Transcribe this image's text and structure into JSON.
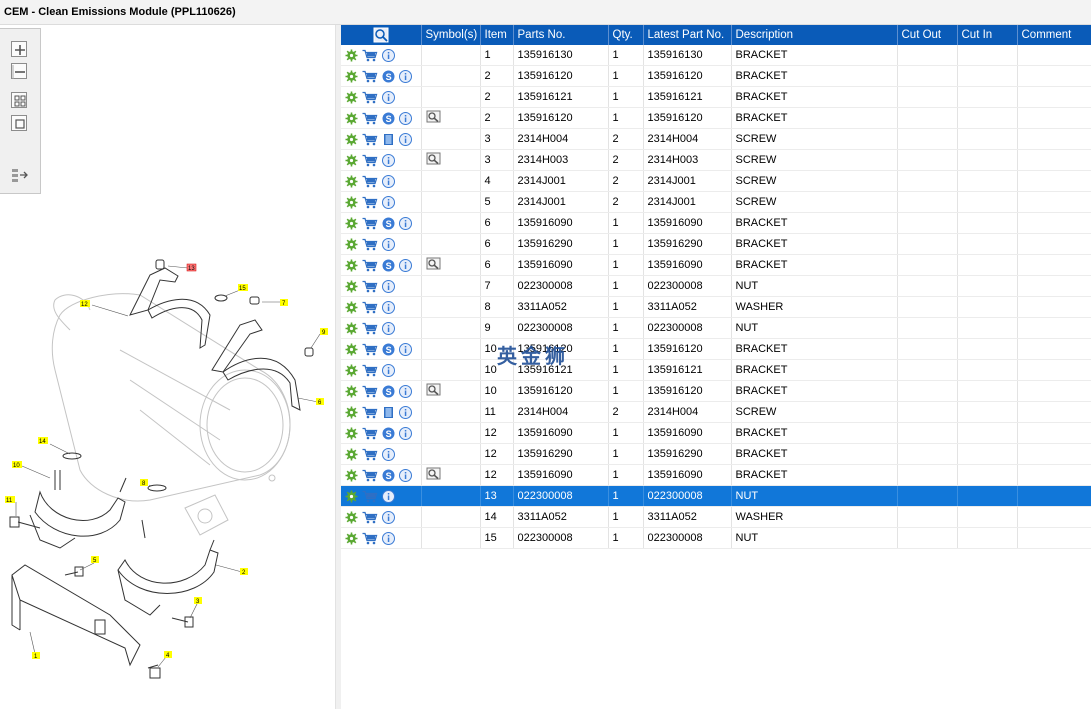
{
  "window": {
    "title": "CEM - Clean Emissions Module (PPL110626)"
  },
  "toolbar": {
    "buttons": [
      {
        "name": "zoom-in-button",
        "icon": "plus-icon"
      },
      {
        "name": "zoom-out-button",
        "icon": "minus-icon"
      },
      {
        "name": "fit-all-button",
        "icon": "grid-icon"
      },
      {
        "name": "fit-window-button",
        "icon": "square-icon"
      },
      {
        "name": "export-button",
        "icon": "list-arrow-icon"
      }
    ]
  },
  "drawing": {
    "callouts": [
      "1",
      "2",
      "3",
      "4",
      "5",
      "6",
      "7",
      "8",
      "9",
      "10",
      "11",
      "12",
      "13",
      "14",
      "15"
    ]
  },
  "grid": {
    "columns": {
      "actions": "",
      "symbols": "Symbol(s)",
      "item": "Item",
      "parts_no": "Parts No.",
      "qty": "Qty.",
      "latest_part_no": "Latest Part No.",
      "description": "Description",
      "cut_out": "Cut Out",
      "cut_in": "Cut In",
      "comment": "Comment"
    },
    "rows": [
      {
        "item": "1",
        "parts_no": "135916130",
        "qty": "1",
        "latest": "135916130",
        "desc": "BRACKET",
        "s": false,
        "book": false,
        "sym": false
      },
      {
        "item": "2",
        "parts_no": "135916120",
        "qty": "1",
        "latest": "135916120",
        "desc": "BRACKET",
        "s": true,
        "book": false,
        "sym": false
      },
      {
        "item": "2",
        "parts_no": "135916121",
        "qty": "1",
        "latest": "135916121",
        "desc": "BRACKET",
        "s": false,
        "book": false,
        "sym": false
      },
      {
        "item": "2",
        "parts_no": "135916120",
        "qty": "1",
        "latest": "135916120",
        "desc": "BRACKET",
        "s": true,
        "book": false,
        "sym": true
      },
      {
        "item": "3",
        "parts_no": "2314H004",
        "qty": "2",
        "latest": "2314H004",
        "desc": "SCREW",
        "s": false,
        "book": true,
        "sym": false
      },
      {
        "item": "3",
        "parts_no": "2314H003",
        "qty": "2",
        "latest": "2314H003",
        "desc": "SCREW",
        "s": false,
        "book": false,
        "sym": true
      },
      {
        "item": "4",
        "parts_no": "2314J001",
        "qty": "2",
        "latest": "2314J001",
        "desc": "SCREW",
        "s": false,
        "book": false,
        "sym": false
      },
      {
        "item": "5",
        "parts_no": "2314J001",
        "qty": "2",
        "latest": "2314J001",
        "desc": "SCREW",
        "s": false,
        "book": false,
        "sym": false
      },
      {
        "item": "6",
        "parts_no": "135916090",
        "qty": "1",
        "latest": "135916090",
        "desc": "BRACKET",
        "s": true,
        "book": false,
        "sym": false
      },
      {
        "item": "6",
        "parts_no": "135916290",
        "qty": "1",
        "latest": "135916290",
        "desc": "BRACKET",
        "s": false,
        "book": false,
        "sym": false
      },
      {
        "item": "6",
        "parts_no": "135916090",
        "qty": "1",
        "latest": "135916090",
        "desc": "BRACKET",
        "s": true,
        "book": false,
        "sym": true
      },
      {
        "item": "7",
        "parts_no": "022300008",
        "qty": "1",
        "latest": "022300008",
        "desc": "NUT",
        "s": false,
        "book": false,
        "sym": false
      },
      {
        "item": "8",
        "parts_no": "3311A052",
        "qty": "1",
        "latest": "3311A052",
        "desc": "WASHER",
        "s": false,
        "book": false,
        "sym": false
      },
      {
        "item": "9",
        "parts_no": "022300008",
        "qty": "1",
        "latest": "022300008",
        "desc": "NUT",
        "s": false,
        "book": false,
        "sym": false
      },
      {
        "item": "10",
        "parts_no": "135916120",
        "qty": "1",
        "latest": "135916120",
        "desc": "BRACKET",
        "s": true,
        "book": false,
        "sym": false
      },
      {
        "item": "10",
        "parts_no": "135916121",
        "qty": "1",
        "latest": "135916121",
        "desc": "BRACKET",
        "s": false,
        "book": false,
        "sym": false
      },
      {
        "item": "10",
        "parts_no": "135916120",
        "qty": "1",
        "latest": "135916120",
        "desc": "BRACKET",
        "s": true,
        "book": false,
        "sym": true
      },
      {
        "item": "11",
        "parts_no": "2314H004",
        "qty": "2",
        "latest": "2314H004",
        "desc": "SCREW",
        "s": false,
        "book": true,
        "sym": false
      },
      {
        "item": "12",
        "parts_no": "135916090",
        "qty": "1",
        "latest": "135916090",
        "desc": "BRACKET",
        "s": true,
        "book": false,
        "sym": false
      },
      {
        "item": "12",
        "parts_no": "135916290",
        "qty": "1",
        "latest": "135916290",
        "desc": "BRACKET",
        "s": false,
        "book": false,
        "sym": false
      },
      {
        "item": "12",
        "parts_no": "135916090",
        "qty": "1",
        "latest": "135916090",
        "desc": "BRACKET",
        "s": true,
        "book": false,
        "sym": true
      },
      {
        "item": "13",
        "parts_no": "022300008",
        "qty": "1",
        "latest": "022300008",
        "desc": "NUT",
        "s": false,
        "book": false,
        "sym": false,
        "selected": true
      },
      {
        "item": "14",
        "parts_no": "3311A052",
        "qty": "1",
        "latest": "3311A052",
        "desc": "WASHER",
        "s": false,
        "book": false,
        "sym": false
      },
      {
        "item": "15",
        "parts_no": "022300008",
        "qty": "1",
        "latest": "022300008",
        "desc": "NUT",
        "s": false,
        "book": false,
        "sym": false
      }
    ]
  },
  "watermark": {
    "text": "英金狮"
  },
  "colors": {
    "header_bg": "#0a5bb8",
    "selected_row": "#1177d9",
    "gear": "#5aa832",
    "cart": "#2f6fc4",
    "info": "#3a7bd5",
    "callout_yellow": "#ffff00"
  }
}
